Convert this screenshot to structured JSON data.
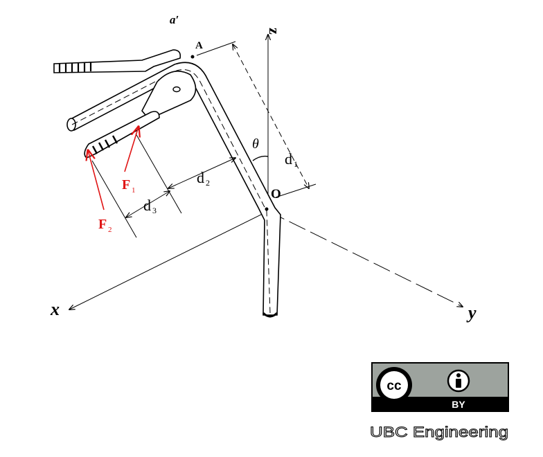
{
  "labels": {
    "a_prime": "a′",
    "point_A": "A",
    "point_O": "O",
    "axis_z": "z",
    "axis_x": "x",
    "axis_y": "y",
    "theta": "θ",
    "d1": "d",
    "d1_sub": "1",
    "d2": "d",
    "d2_sub": "2",
    "d3": "d",
    "d3_sub": "3",
    "F1": "F",
    "F1_sub": "1",
    "F2": "F",
    "F2_sub": "2"
  },
  "license": {
    "cc": "cc",
    "by": "BY",
    "credit": "UBC Engineering"
  },
  "colors": {
    "ink": "#000000",
    "force": "#e01515",
    "badge_gray": "#9da39e",
    "badge_dark": "#000000"
  },
  "icons": [
    "cc-icon",
    "person-icon"
  ]
}
